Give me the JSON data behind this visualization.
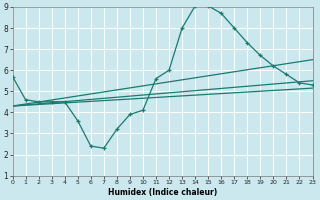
{
  "xlabel": "Humidex (Indice chaleur)",
  "ylabel": "",
  "bg_color": "#cce8ef",
  "grid_color": "#ffffff",
  "line_color": "#1a7a6e",
  "x_min": 0,
  "x_max": 23,
  "y_min": 1,
  "y_max": 9,
  "x_ticks": [
    0,
    1,
    2,
    3,
    4,
    5,
    6,
    7,
    8,
    9,
    10,
    11,
    12,
    13,
    14,
    15,
    16,
    17,
    18,
    19,
    20,
    21,
    22,
    23
  ],
  "y_ticks": [
    1,
    2,
    3,
    4,
    5,
    6,
    7,
    8,
    9
  ],
  "curve_x": [
    0,
    1,
    2,
    3,
    4,
    5,
    6,
    7,
    8,
    9,
    10,
    11,
    12,
    13,
    14,
    15,
    16,
    17,
    18,
    19,
    20,
    21,
    22,
    23
  ],
  "curve_y": [
    5.7,
    4.6,
    4.5,
    4.5,
    4.5,
    3.6,
    2.4,
    2.3,
    3.2,
    3.9,
    4.1,
    5.6,
    6.0,
    8.0,
    9.05,
    9.05,
    8.7,
    8.0,
    7.3,
    6.7,
    6.2,
    5.8,
    5.4,
    5.3
  ],
  "trend1_x": [
    0,
    23
  ],
  "trend1_y": [
    4.3,
    6.5
  ],
  "trend2_x": [
    0,
    23
  ],
  "trend2_y": [
    4.3,
    5.5
  ],
  "trend3_x": [
    0,
    23
  ],
  "trend3_y": [
    4.3,
    5.15
  ]
}
